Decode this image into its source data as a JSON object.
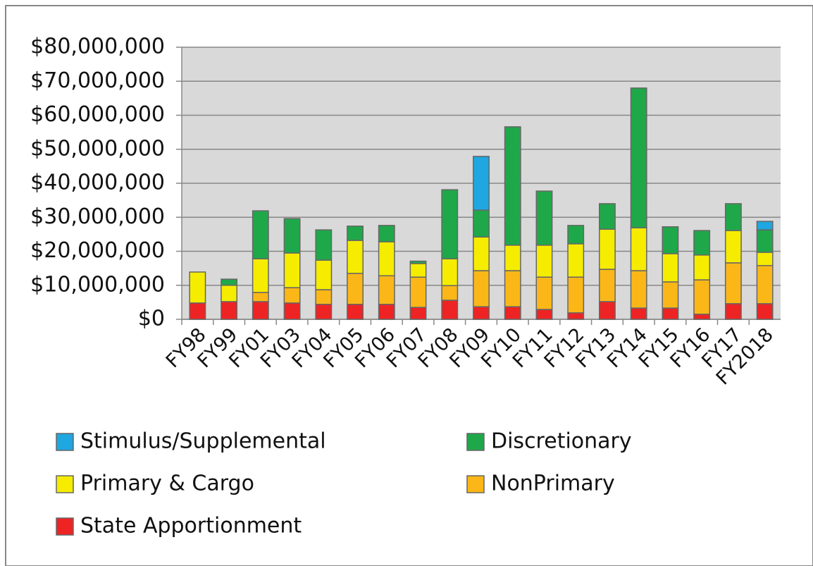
{
  "chart_data": {
    "type": "stacked_bar",
    "categories": [
      "FY98",
      "FY99",
      "FY01",
      "FY03",
      "FY04",
      "FY05",
      "FY06",
      "FY07",
      "FY08",
      "FY09",
      "FY10",
      "FY11",
      "FY12",
      "FY13",
      "FY14",
      "FY15",
      "FY16",
      "FY17",
      "FY2018"
    ],
    "series": [
      {
        "name": "Stimulus/Supplemental",
        "color": "#1ea7e1",
        "values": [
          0,
          0,
          0,
          0,
          0,
          0,
          0,
          0,
          0,
          15800000,
          0,
          0,
          0,
          0,
          0,
          0,
          0,
          0,
          2500000
        ]
      },
      {
        "name": "Discretionary",
        "color": "#1fa84a",
        "values": [
          0,
          1800000,
          14100000,
          10100000,
          8900000,
          4200000,
          4800000,
          700000,
          20300000,
          7900000,
          34800000,
          15900000,
          5400000,
          7500000,
          41100000,
          7900000,
          7200000,
          7900000,
          6600000
        ]
      },
      {
        "name": "Primary & Cargo",
        "color": "#f5ec00",
        "values": [
          9100000,
          4800000,
          9900000,
          10200000,
          8700000,
          9700000,
          10000000,
          4000000,
          7900000,
          9900000,
          7500000,
          9400000,
          9800000,
          11800000,
          12600000,
          8300000,
          7300000,
          9500000,
          3900000
        ]
      },
      {
        "name": "NonPrimary",
        "color": "#fbb717",
        "values": [
          0,
          0,
          2700000,
          4500000,
          4300000,
          9100000,
          8400000,
          8900000,
          4300000,
          10600000,
          10600000,
          9500000,
          10500000,
          9500000,
          11000000,
          7700000,
          10100000,
          12000000,
          11200000
        ]
      },
      {
        "name": "State Apportionment",
        "color": "#ee2324",
        "values": [
          4800000,
          5200000,
          5200000,
          4800000,
          4400000,
          4400000,
          4400000,
          3500000,
          5600000,
          3700000,
          3700000,
          2900000,
          1900000,
          5200000,
          3300000,
          3300000,
          1500000,
          4600000,
          4600000
        ]
      }
    ],
    "ylim": [
      0,
      80000000
    ],
    "yticks": [
      {
        "value": 0,
        "label": "$0"
      },
      {
        "value": 10000000,
        "label": "$10,000,000"
      },
      {
        "value": 20000000,
        "label": "$20,000,000"
      },
      {
        "value": 30000000,
        "label": "$30,000,000"
      },
      {
        "value": 40000000,
        "label": "$40,000,000"
      },
      {
        "value": 50000000,
        "label": "$50,000,000"
      },
      {
        "value": 60000000,
        "label": "$60,000,000"
      },
      {
        "value": 70000000,
        "label": "$70,000,000"
      },
      {
        "value": 80000000,
        "label": "$80,000,000"
      }
    ],
    "grid": true
  }
}
